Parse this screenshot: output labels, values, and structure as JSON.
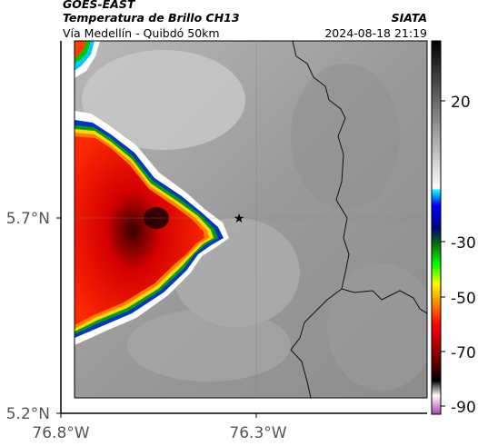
{
  "header": {
    "title": "GOES-EAST",
    "subtitle": "Temperatura de Brillo CH13",
    "location": "Vía Medellín - Quibdó 50km",
    "source": "SIATA",
    "datetime": "2024-08-18 21:19"
  },
  "axes": {
    "y_ticks": [
      {
        "label": "5.7°N",
        "value": 5.7
      },
      {
        "label": "5.2°N",
        "value": 5.2
      }
    ],
    "x_ticks": [
      {
        "label": "76.8°W",
        "value": -76.8
      },
      {
        "label": "76.3°W",
        "value": -76.3
      }
    ]
  },
  "colorbar": {
    "labels": [
      "20",
      "-30",
      "-50",
      "-70",
      "-90"
    ]
  },
  "marker": {
    "name": "star",
    "lon": -76.32,
    "lat": 5.7
  }
}
